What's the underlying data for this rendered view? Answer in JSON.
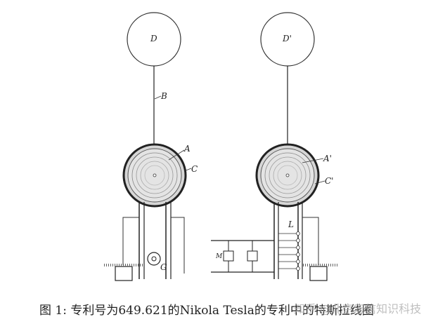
{
  "figure": {
    "left_apparatus": {
      "sphere_label": "D",
      "wire_label": "B",
      "coil_label": "A",
      "cylinder_label": "C",
      "generator_label": "G"
    },
    "right_apparatus": {
      "sphere_label": "D'",
      "coil_label": "A'",
      "cylinder_label": "C'",
      "device_label": "L",
      "motor_label": "M"
    }
  },
  "caption": {
    "text": "图 1: 专利号为649.621的Nikola Tesla的专利中的特斯拉线圈"
  },
  "watermark": {
    "text": "知乎 @北京宏信知识科技"
  }
}
